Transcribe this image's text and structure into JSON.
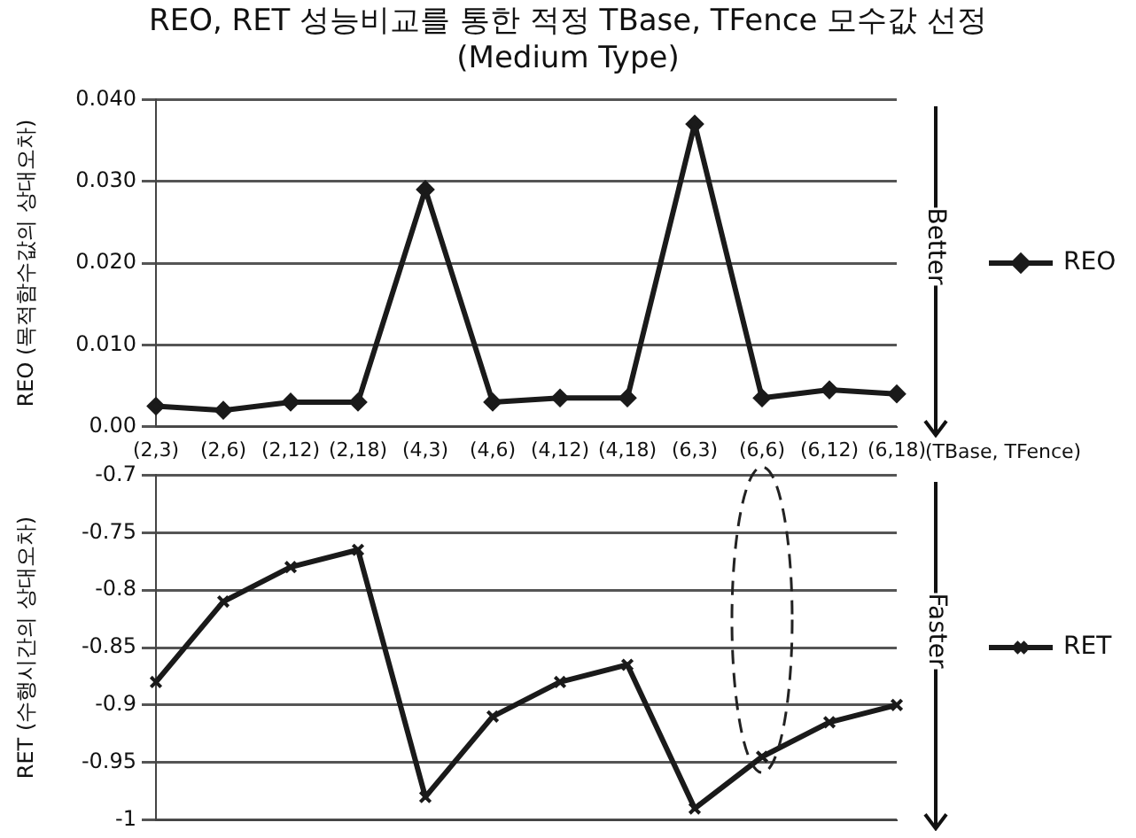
{
  "chart_data": [
    {
      "type": "line",
      "title": "REO, RET 성능비교를 통한 적정 TBase, TFence 모수값 선정",
      "subtitle": "(Medium Type)",
      "ylabel": "REO (목적함수값의 상대오차)",
      "xlabel": "(TBase, TFence)",
      "categories": [
        "(2,3)",
        "(2,6)",
        "(2,12)",
        "(2,18)",
        "(4,3)",
        "(4,6)",
        "(4,12)",
        "(4,18)",
        "(6,3)",
        "(6,6)",
        "(6,12)",
        "(6,18)"
      ],
      "series": [
        {
          "name": "REO",
          "color": "#1a1a1a",
          "values": [
            0.0025,
            0.002,
            0.003,
            0.003,
            0.029,
            0.003,
            0.0035,
            0.0035,
            0.037,
            0.0035,
            0.0045,
            0.004
          ]
        }
      ],
      "ylim": [
        0,
        0.04
      ],
      "yticks": [
        {
          "value": 0,
          "label": "0.00"
        },
        {
          "value": 0.01,
          "label": "0.010"
        },
        {
          "value": 0.02,
          "label": "0.020"
        },
        {
          "value": 0.03,
          "label": "0.030"
        },
        {
          "value": 0.04,
          "label": "0.040"
        }
      ],
      "grid": "y",
      "legend": "right",
      "marker": "diamond",
      "line_style": "solid",
      "annotations": [
        "Better"
      ]
    },
    {
      "type": "line",
      "ylabel": "RET (수행시간의 상대오차)",
      "categories": [
        null,
        null,
        null,
        null,
        null,
        null,
        null,
        null,
        null,
        null,
        null,
        null
      ],
      "series": [
        {
          "name": "RET",
          "color": "#1a1a1a",
          "values": [
            -0.88,
            -0.81,
            -0.78,
            -0.765,
            -0.98,
            -0.91,
            -0.88,
            -0.865,
            -0.99,
            -0.945,
            -0.915,
            -0.9
          ]
        }
      ],
      "ylim": [
        -1,
        -0.7
      ],
      "yticks": [
        -1,
        -0.95,
        -0.9,
        -0.85,
        -0.8,
        -0.75,
        -0.7
      ],
      "tick_labels": "y",
      "grid": "y",
      "legend": "right",
      "marker": "cross",
      "line_style": "solid",
      "annotations": [
        "Faster"
      ]
    }
  ]
}
